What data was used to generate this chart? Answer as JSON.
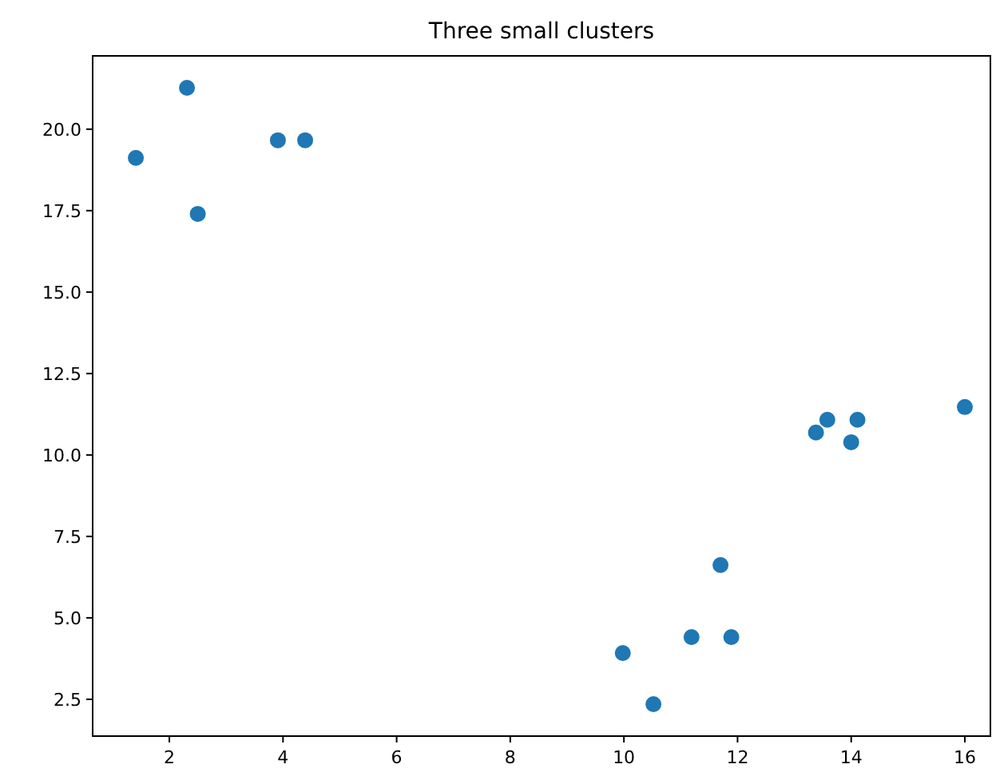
{
  "chart_data": {
    "type": "scatter",
    "title": "Three small clusters",
    "x": [
      1.41,
      2.31,
      2.5,
      3.91,
      4.39,
      9.98,
      10.52,
      11.19,
      11.89,
      11.7,
      13.38,
      13.58,
      14.11,
      14.0,
      16.0
    ],
    "series": [
      {
        "color": "#1f77b4",
        "values": [
          19.12,
          21.27,
          17.4,
          19.66,
          19.66,
          3.92,
          2.35,
          4.41,
          4.41,
          6.62,
          10.69,
          11.08,
          11.08,
          10.39,
          11.47
        ]
      }
    ],
    "xlim": [
      0.65,
      16.45
    ],
    "xticks": [
      2,
      4,
      6,
      8,
      10,
      12,
      14,
      16
    ],
    "ylim": [
      1.37,
      22.25
    ],
    "yticks": [
      {
        "value": 2.5,
        "label": "2.5"
      },
      {
        "value": 5,
        "label": "5.0"
      },
      {
        "value": 7.5,
        "label": "7.5"
      },
      {
        "value": 10,
        "label": "10.0"
      },
      {
        "value": 12.5,
        "label": "12.5"
      },
      {
        "value": 15,
        "label": "15.0"
      },
      {
        "value": 17.5,
        "label": "17.5"
      },
      {
        "value": 20,
        "label": "20.0"
      }
    ],
    "marker": "circle",
    "grid": false
  }
}
